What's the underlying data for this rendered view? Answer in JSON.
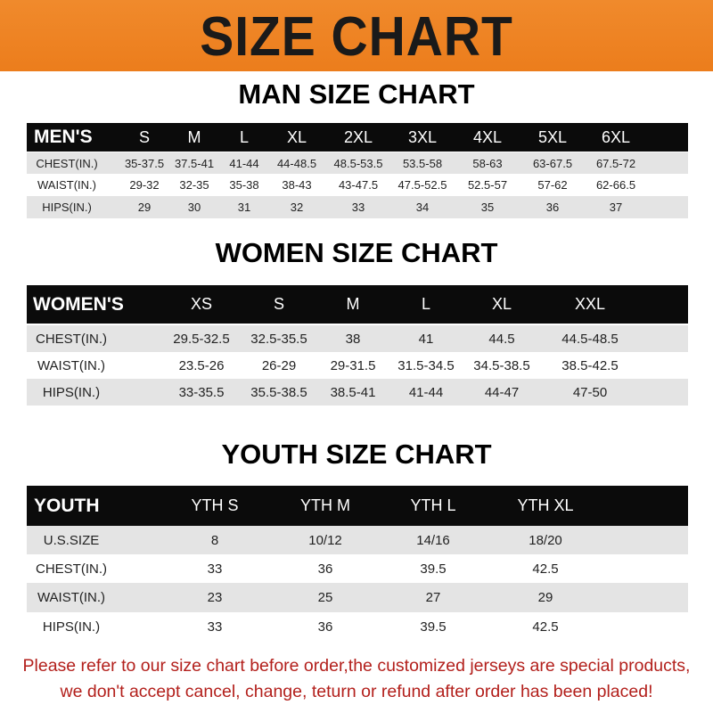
{
  "banner": {
    "title": "SIZE CHART",
    "color": "#ee8324"
  },
  "men": {
    "title": "MAN SIZE CHART",
    "header": [
      "MEN'S",
      "S",
      "M",
      "L",
      "XL",
      "2XL",
      "3XL",
      "4XL",
      "5XL",
      "6XL"
    ],
    "rows": [
      [
        "CHEST(IN.)",
        "35-37.5",
        "37.5-41",
        "41-44",
        "44-48.5",
        "48.5-53.5",
        "53.5-58",
        "58-63",
        "63-67.5",
        "67.5-72"
      ],
      [
        "WAIST(IN.)",
        "29-32",
        "32-35",
        "35-38",
        "38-43",
        "43-47.5",
        "47.5-52.5",
        "52.5-57",
        "57-62",
        "62-66.5"
      ],
      [
        "HIPS(IN.)",
        "29",
        "30",
        "31",
        "32",
        "33",
        "34",
        "35",
        "36",
        "37"
      ]
    ]
  },
  "women": {
    "title": "WOMEN SIZE CHART",
    "header": [
      "WOMEN'S",
      "XS",
      "S",
      "M",
      "L",
      "XL",
      "XXL"
    ],
    "rows": [
      [
        "CHEST(IN.)",
        "29.5-32.5",
        "32.5-35.5",
        "38",
        "41",
        "44.5",
        "44.5-48.5"
      ],
      [
        "WAIST(IN.)",
        "23.5-26",
        "26-29",
        "29-31.5",
        "31.5-34.5",
        "34.5-38.5",
        "38.5-42.5"
      ],
      [
        "HIPS(IN.)",
        "33-35.5",
        "35.5-38.5",
        "38.5-41",
        "41-44",
        "44-47",
        "47-50"
      ]
    ]
  },
  "youth": {
    "title": "YOUTH SIZE CHART",
    "header": [
      "YOUTH",
      "YTH S",
      "YTH M",
      "YTH L",
      "YTH XL"
    ],
    "rows": [
      [
        "U.S.SIZE",
        "8",
        "10/12",
        "14/16",
        "18/20"
      ],
      [
        "CHEST(IN.)",
        "33",
        "36",
        "39.5",
        "42.5"
      ],
      [
        "WAIST(IN.)",
        "23",
        "25",
        "27",
        "29"
      ],
      [
        "HIPS(IN.)",
        "33",
        "36",
        "39.5",
        "42.5"
      ]
    ]
  },
  "footer": {
    "line1": "Please refer to our size chart before order,the customized jerseys are special products,",
    "line2": "we don't accept cancel, change, teturn or refund after order has been placed!",
    "color": "#b3201c"
  }
}
